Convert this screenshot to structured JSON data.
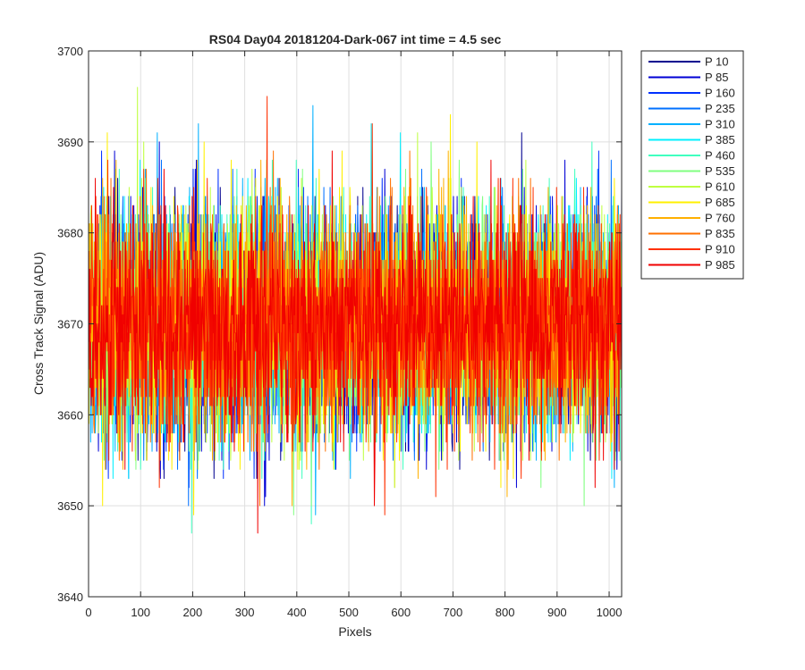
{
  "chart_data": {
    "type": "line",
    "title": "RS04 Day04 20181204-Dark-067 int time = 4.5 sec",
    "xlabel": "Pixels",
    "ylabel": "Cross Track Signal (ADU)",
    "xlim": [
      0,
      1024
    ],
    "ylim": [
      3640,
      3700
    ],
    "xticks": [
      0,
      100,
      200,
      300,
      400,
      500,
      600,
      700,
      800,
      900,
      1000
    ],
    "yticks": [
      3640,
      3650,
      3660,
      3670,
      3680,
      3690,
      3700
    ],
    "grid": true,
    "legend_position": "outside-top-right",
    "n_points": 1024,
    "mean_signal": 3670,
    "noise_std": 6.3,
    "series": [
      {
        "name": "P 10",
        "color": "#00008F"
      },
      {
        "name": "P 85",
        "color": "#0000D5"
      },
      {
        "name": "P 160",
        "color": "#0030FF"
      },
      {
        "name": "P 235",
        "color": "#0070FF"
      },
      {
        "name": "P 310",
        "color": "#00B0FF"
      },
      {
        "name": "P 385",
        "color": "#00F0FF"
      },
      {
        "name": "P 460",
        "color": "#40FFBF"
      },
      {
        "name": "P 535",
        "color": "#80FF80"
      },
      {
        "name": "P 610",
        "color": "#BFFF40"
      },
      {
        "name": "P 685",
        "color": "#FFF000"
      },
      {
        "name": "P 760",
        "color": "#FFB000"
      },
      {
        "name": "P 835",
        "color": "#FF7000"
      },
      {
        "name": "P 910",
        "color": "#FF3000"
      },
      {
        "name": "P 985",
        "color": "#F00000"
      }
    ]
  }
}
